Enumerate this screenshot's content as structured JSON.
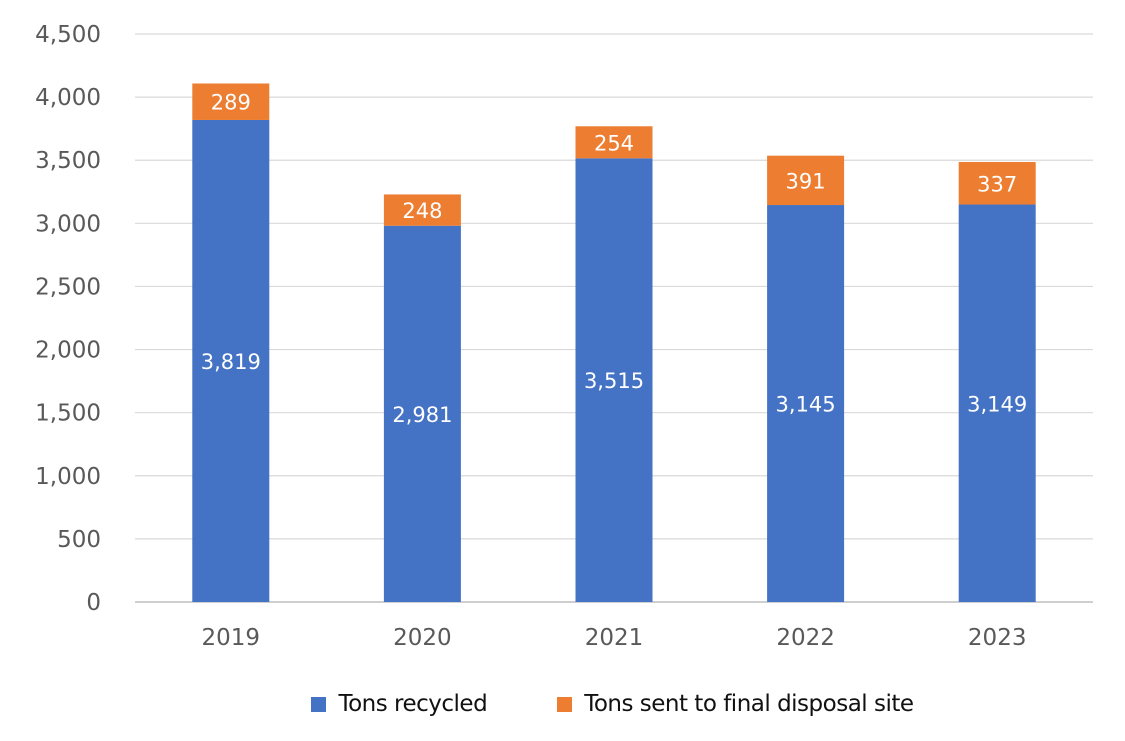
{
  "chart_data": {
    "type": "bar",
    "stacked": true,
    "categories": [
      "2019",
      "2020",
      "2021",
      "2022",
      "2023"
    ],
    "series": [
      {
        "name": "Tons recycled",
        "color": "#4472C4",
        "values": [
          3819,
          2981,
          3515,
          3145,
          3149
        ],
        "labels": [
          "3,819",
          "2,981",
          "3,515",
          "3,145",
          "3,149"
        ]
      },
      {
        "name": "Tons sent to final disposal site",
        "color": "#ED7D31",
        "values": [
          289,
          248,
          254,
          391,
          337
        ],
        "labels": [
          "289",
          "248",
          "254",
          "391",
          "337"
        ]
      }
    ],
    "title": "",
    "xlabel": "",
    "ylabel": "",
    "ylim": [
      0,
      4500
    ],
    "yticks": [
      0,
      500,
      1000,
      1500,
      2000,
      2500,
      3000,
      3500,
      4000,
      4500
    ],
    "ytick_labels": [
      "0",
      "500",
      "1,000",
      "1,500",
      "2,000",
      "2,500",
      "3,000",
      "3,500",
      "4,000",
      "4,500"
    ],
    "grid": true,
    "legend_position": "bottom"
  }
}
